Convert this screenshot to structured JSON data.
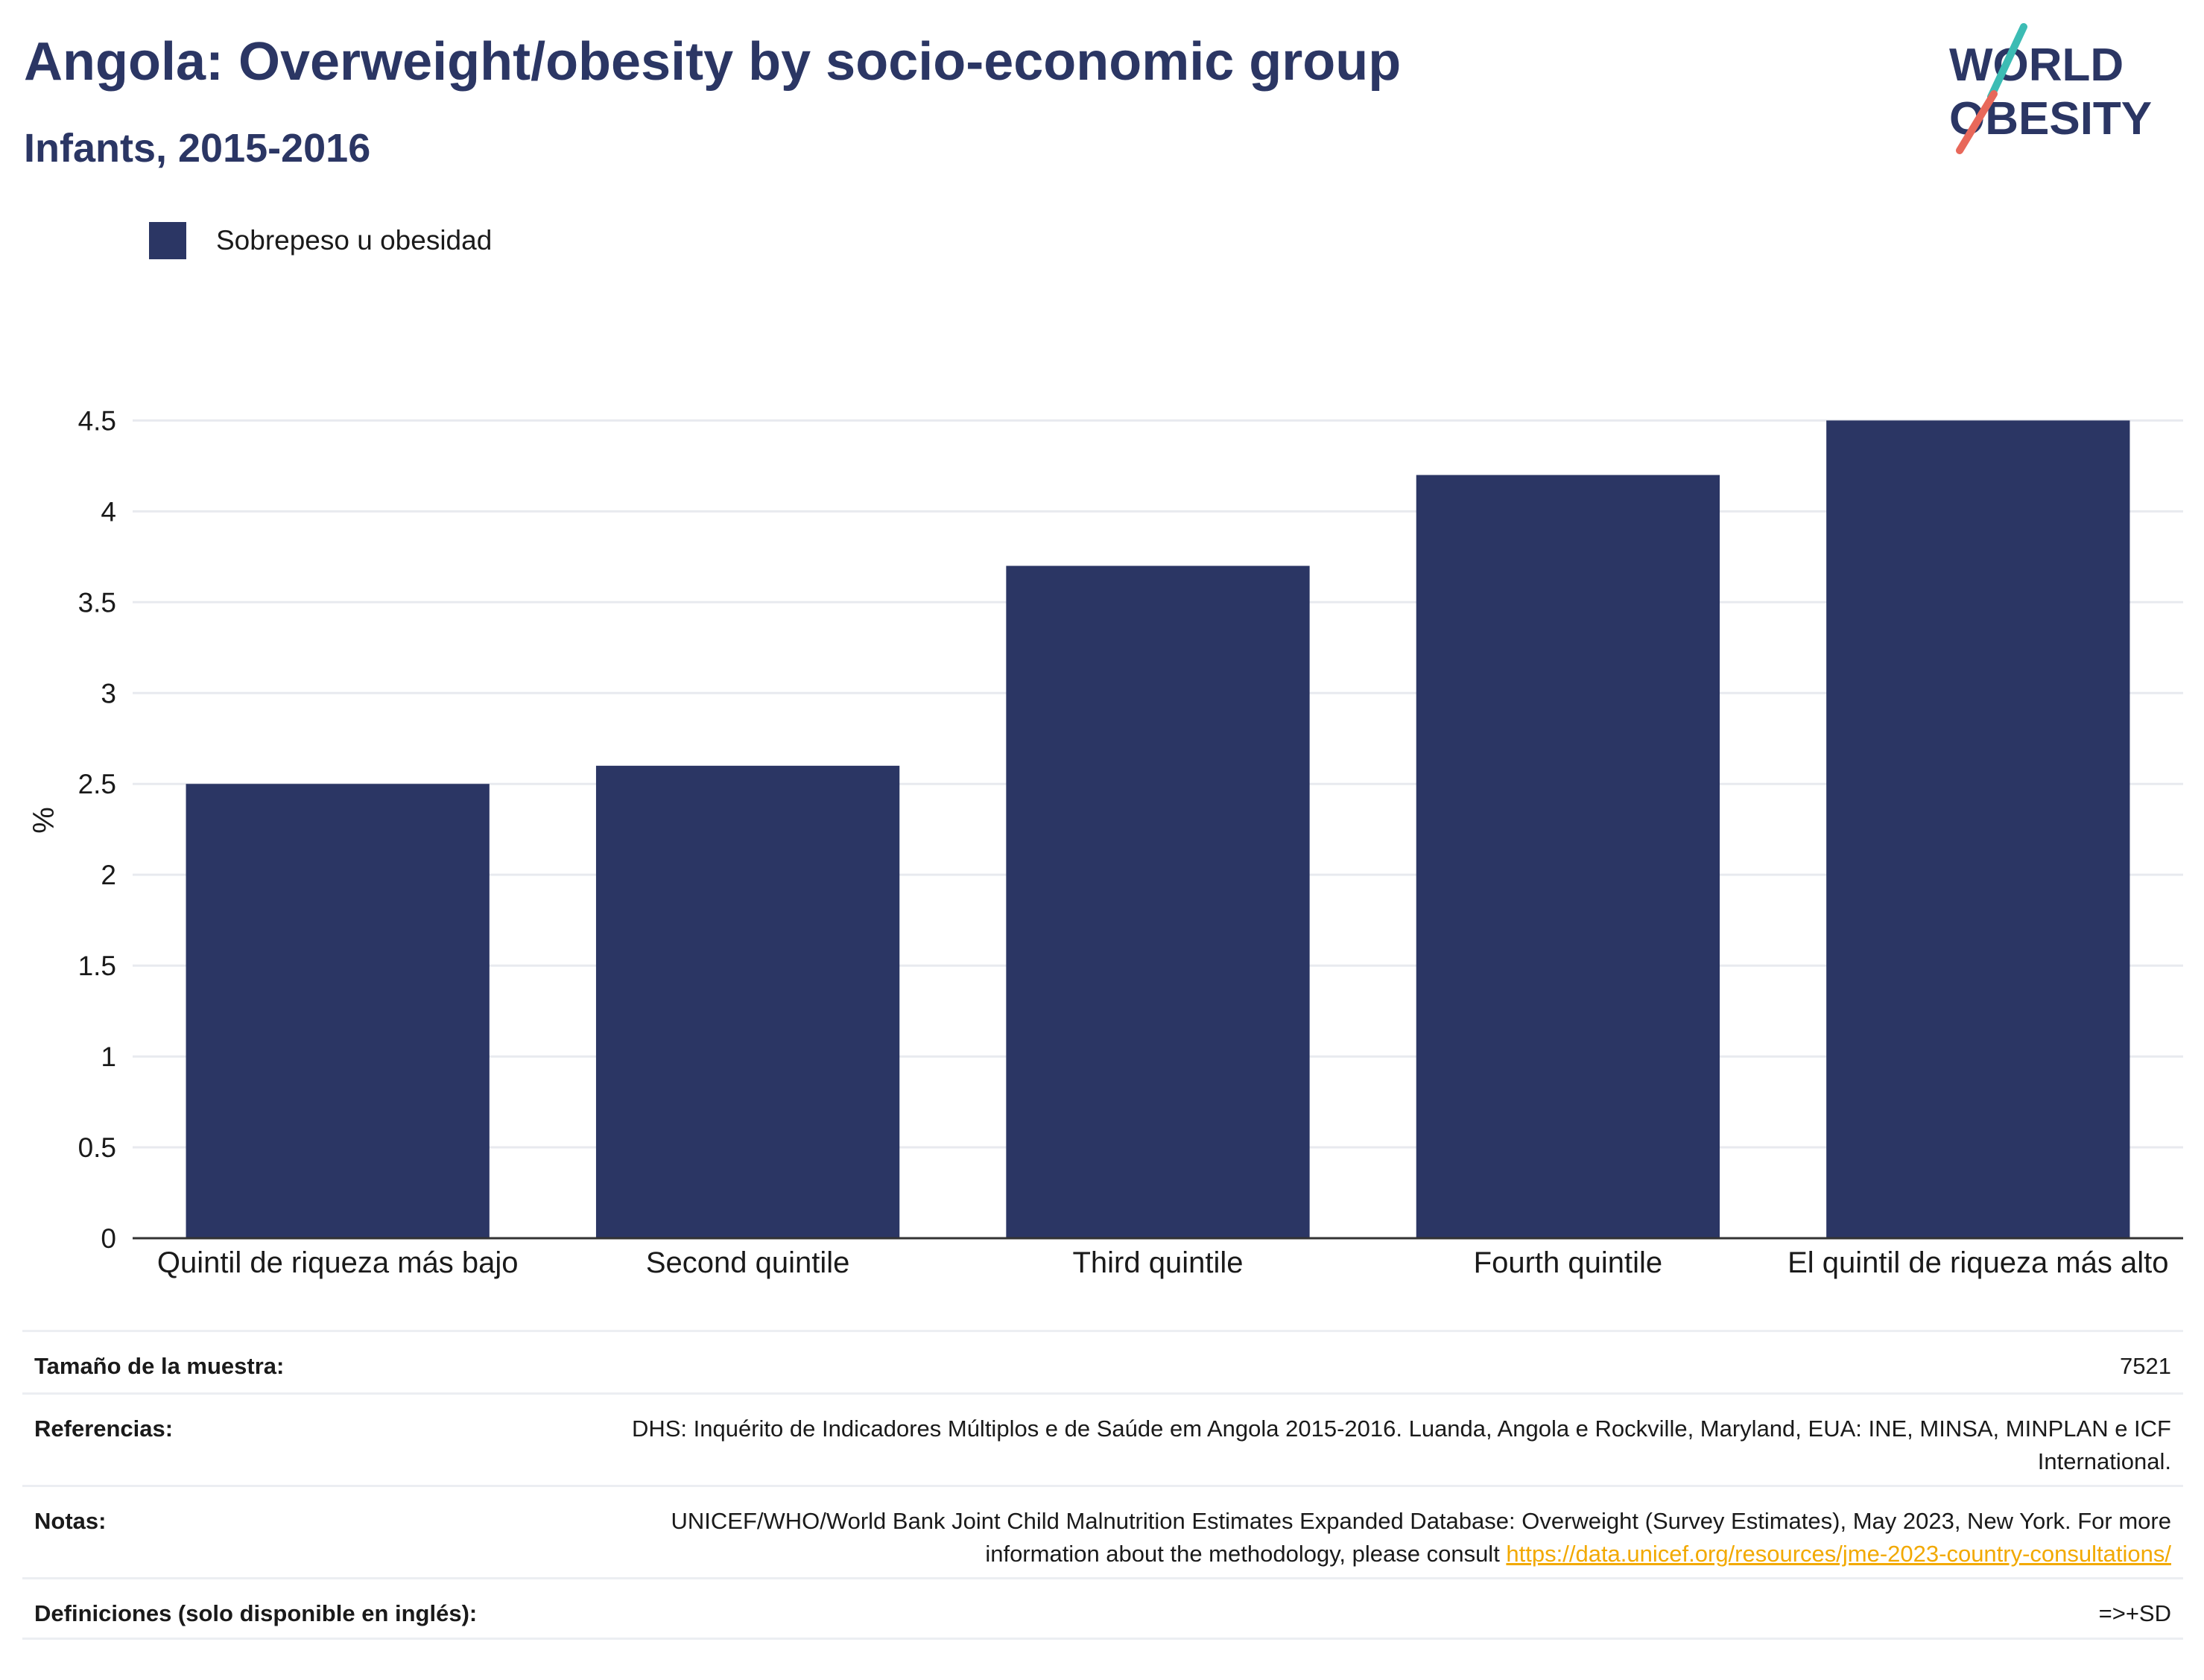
{
  "header": {
    "title": "Angola: Overweight/obesity by socio-economic group",
    "subtitle": "Infants, 2015-2016"
  },
  "logo": {
    "line1": "WORLD",
    "line2": "OBESITY",
    "text_color": "#2b3664",
    "slash_top_color": "#3cbcb4",
    "slash_bottom_color": "#e8685a"
  },
  "legend": {
    "label": "Sobrepeso u obesidad",
    "color": "#2b3664"
  },
  "chart_data": {
    "type": "bar",
    "categories": [
      "Quintil de riqueza más bajo",
      "Second quintile",
      "Third quintile",
      "Fourth quintile",
      "El quintil de riqueza más alto"
    ],
    "series": [
      {
        "name": "Sobrepeso u obesidad",
        "values": [
          2.5,
          2.6,
          3.7,
          4.2,
          4.5
        ]
      }
    ],
    "xlabel": "",
    "ylabel": "%",
    "ylim": [
      0,
      4.6
    ],
    "yticks": [
      0,
      0.5,
      1,
      1.5,
      2,
      2.5,
      3,
      3.5,
      4,
      4.5
    ],
    "ytick_labels": [
      "0",
      "0.5",
      "1",
      "1.5",
      "2",
      "2.5",
      "3",
      "3.5",
      "4",
      "4.5"
    ],
    "grid": true,
    "legend_position": "top-left",
    "bar_color": "#2b3664"
  },
  "info_table": {
    "sample_label": "Tamaño de la muestra:",
    "sample_value": "7521",
    "references_label": "Referencias:",
    "references_value": "DHS: Inquérito de Indicadores Múltiplos e de Saúde em Angola 2015-2016. Luanda, Angola e Rockville, Maryland, EUA: INE, MINSA, MINPLAN e ICF International.",
    "notes_label": "Notas:",
    "notes_value": "UNICEF/WHO/World Bank Joint Child Malnutrition Estimates Expanded Database: Overweight (Survey Estimates), May 2023, New York. For more information about the methodology, please consult ",
    "notes_link": "https://data.unicef.org/resources/jme-2023-country-consultations/",
    "definitions_label": "Definiciones (solo disponible en inglés):",
    "definitions_value": "=>+SD"
  }
}
